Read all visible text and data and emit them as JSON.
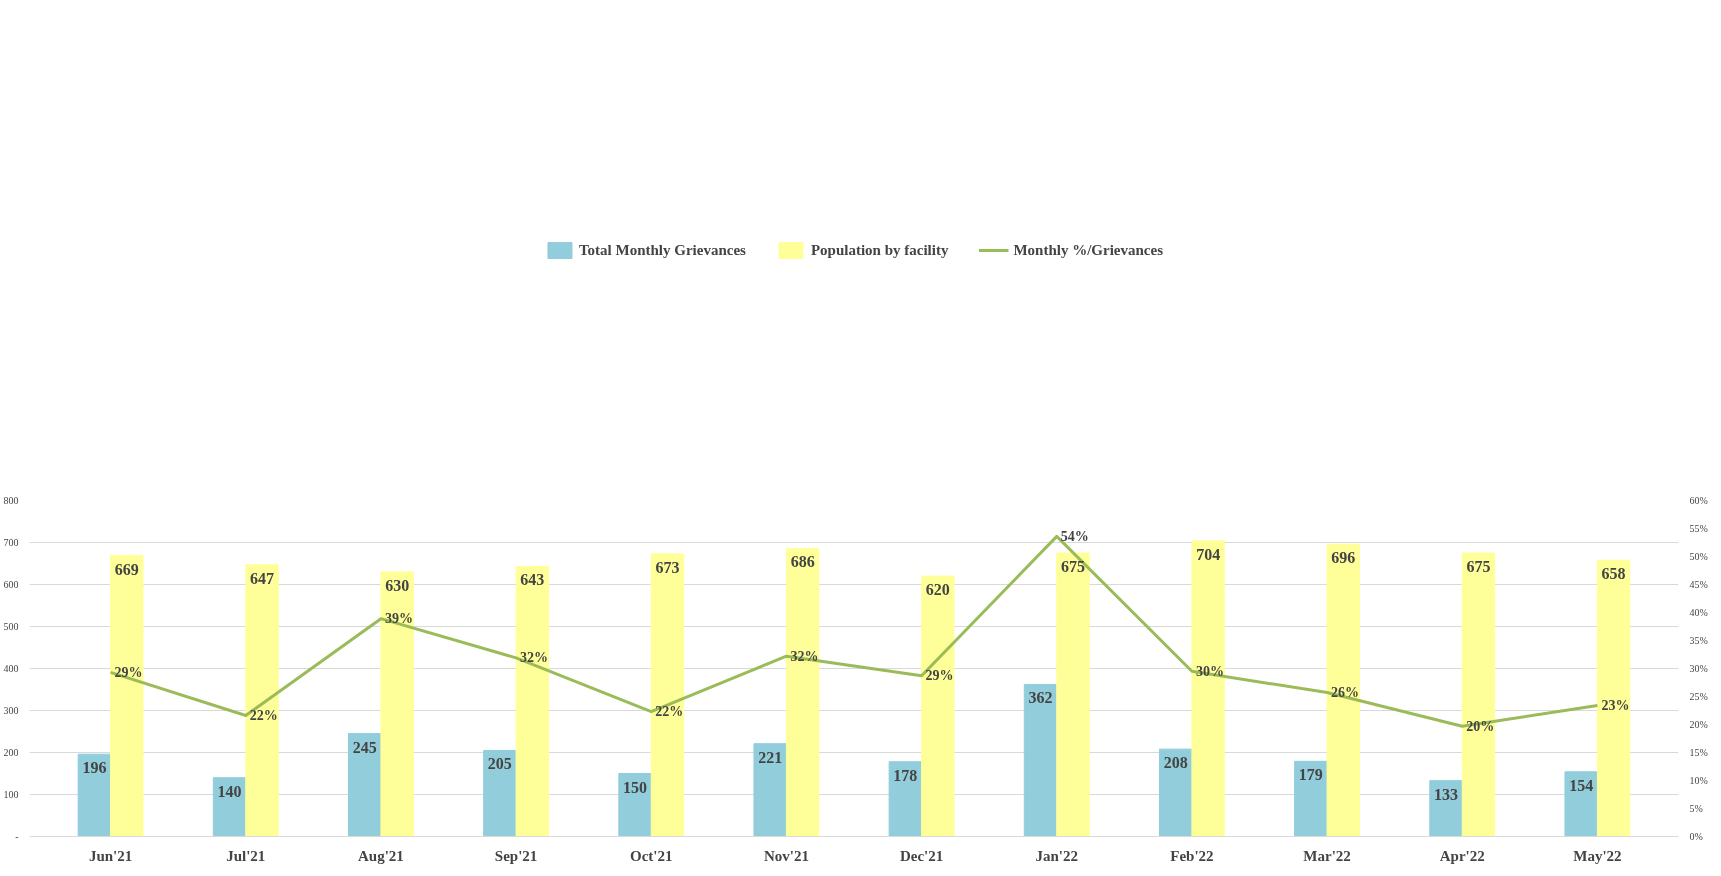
{
  "chart_data": {
    "type": "bar",
    "categories": [
      "Jun'21",
      "Jul'21",
      "Aug'21",
      "Sep'21",
      "Oct'21",
      "Nov'21",
      "Dec'21",
      "Jan'22",
      "Feb'22",
      "Mar'22",
      "Apr'22",
      "May'22"
    ],
    "series": [
      {
        "name": "Total Monthly Grievances",
        "color": "#92cddc",
        "values": [
          196,
          140,
          245,
          205,
          150,
          221,
          178,
          362,
          208,
          179,
          133,
          154
        ]
      },
      {
        "name": "Population by facility",
        "color": "#ffff99",
        "values": [
          669,
          647,
          630,
          643,
          673,
          686,
          620,
          675,
          704,
          696,
          675,
          658
        ]
      },
      {
        "name": "Monthly %/Grievances",
        "type": "line",
        "axis": "y2",
        "color": "#9bbb59",
        "values": [
          29.3,
          21.6,
          38.9,
          31.9,
          22.3,
          32.2,
          28.7,
          53.6,
          29.5,
          25.7,
          19.7,
          23.4
        ],
        "value_labels": [
          "29%",
          "22%",
          "39%",
          "32%",
          "22%",
          "32%",
          "29%",
          "54%",
          "30%",
          "26%",
          "20%",
          "23%"
        ]
      }
    ],
    "ylim": [
      0,
      800
    ],
    "yticks": [
      {
        "value": 0,
        "label": "-"
      },
      100,
      200,
      300,
      400,
      500,
      600,
      700,
      800
    ],
    "y2lim": [
      0,
      60
    ],
    "y2ticks": [
      {
        "value": 0,
        "label": "0%"
      },
      {
        "value": 5,
        "label": "5%"
      },
      {
        "value": 10,
        "label": "10%"
      },
      {
        "value": 15,
        "label": "15%"
      },
      {
        "value": 20,
        "label": "20%"
      },
      {
        "value": 25,
        "label": "25%"
      },
      {
        "value": 30,
        "label": "30%"
      },
      {
        "value": 35,
        "label": "35%"
      },
      {
        "value": 40,
        "label": "40%"
      },
      {
        "value": 45,
        "label": "45%"
      },
      {
        "value": 50,
        "label": "50%"
      },
      {
        "value": 55,
        "label": "55%"
      },
      {
        "value": 60,
        "label": "60%"
      }
    ],
    "data_labels": true,
    "grid": "y",
    "legend": "top",
    "marker": "none",
    "line_style": "solid"
  }
}
